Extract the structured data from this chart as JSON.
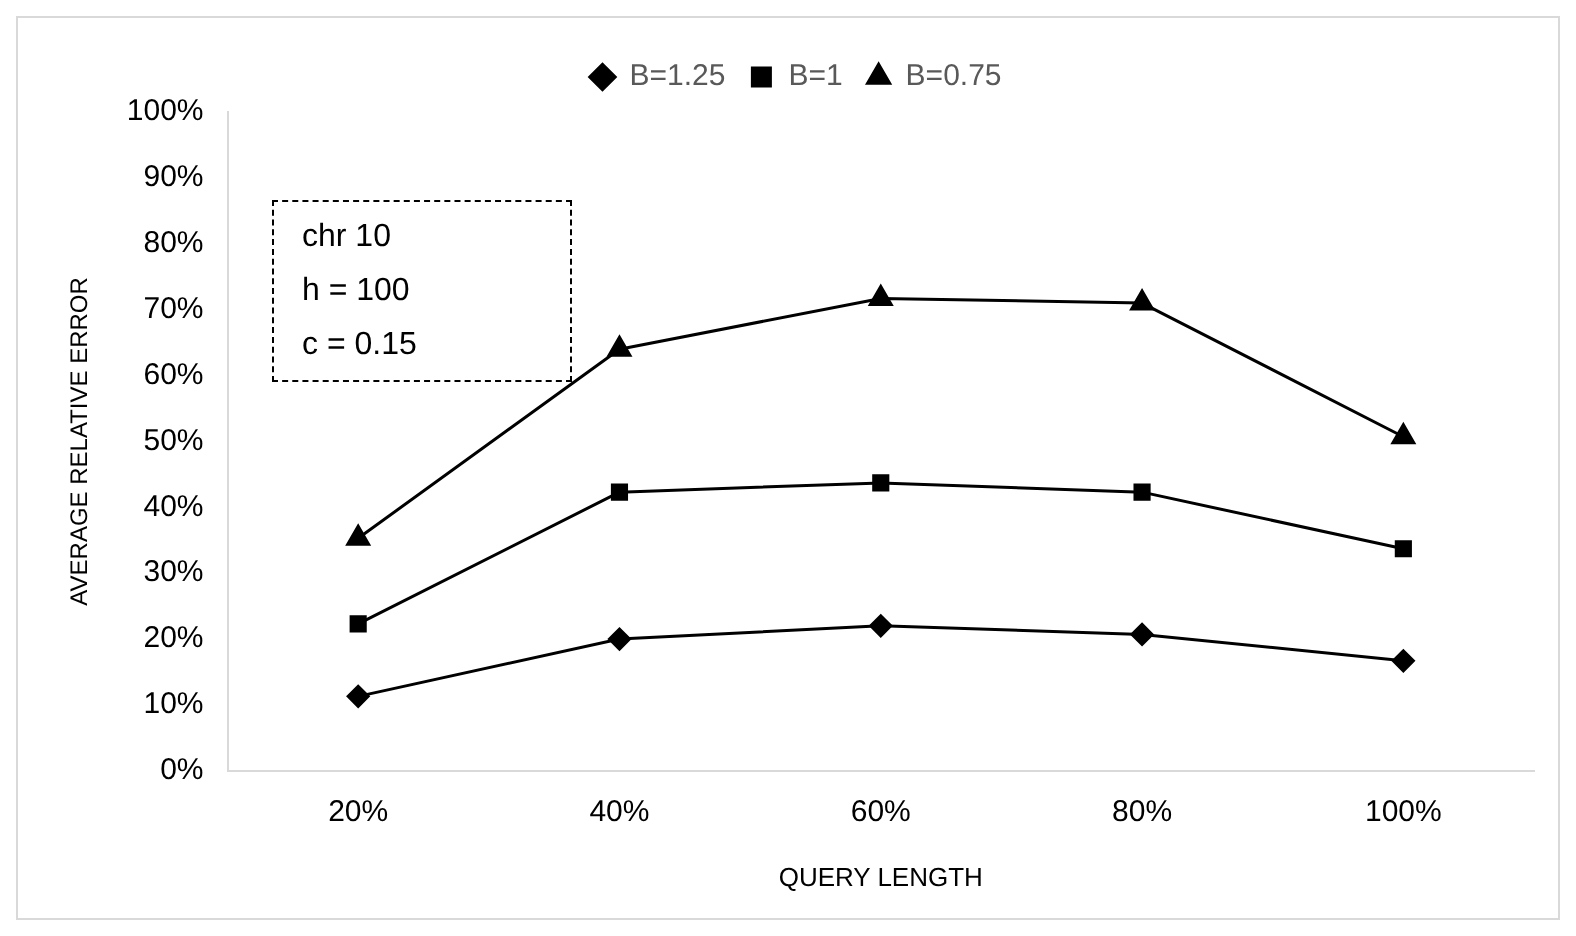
{
  "chart_data": {
    "type": "line",
    "xlabel": "QUERY LENGTH",
    "ylabel": "AVERAGE RELATIVE ERROR",
    "categories": [
      "20%",
      "40%",
      "60%",
      "80%",
      "100%"
    ],
    "series": [
      {
        "name": "B=1.25",
        "color": "#000000",
        "marker": "diamond",
        "values": [
          11.3,
          20,
          22,
          20.7,
          16.7
        ]
      },
      {
        "name": "B=1",
        "color": "#000000",
        "marker": "square",
        "values": [
          22.3,
          42.3,
          43.7,
          42.3,
          33.7
        ]
      },
      {
        "name": "B=0.75",
        "color": "#000000",
        "marker": "triangle",
        "values": [
          35.3,
          64,
          71.7,
          71,
          50.7
        ]
      }
    ],
    "ylim": [
      0,
      100
    ],
    "yticks": [
      {
        "value": 0,
        "label": "0%"
      },
      {
        "value": 10,
        "label": "10%"
      },
      {
        "value": 20,
        "label": "20%"
      },
      {
        "value": 30,
        "label": "30%"
      },
      {
        "value": 40,
        "label": "40%"
      },
      {
        "value": 50,
        "label": "50%"
      },
      {
        "value": 60,
        "label": "60%"
      },
      {
        "value": 70,
        "label": "70%"
      },
      {
        "value": 80,
        "label": "80%"
      },
      {
        "value": 90,
        "label": "90%"
      },
      {
        "value": 100,
        "label": "100%"
      }
    ],
    "grid": false,
    "legend": "top",
    "line_style": "solid",
    "annotations": [
      "chr 10",
      "h = 100",
      "c = 0.15"
    ]
  }
}
